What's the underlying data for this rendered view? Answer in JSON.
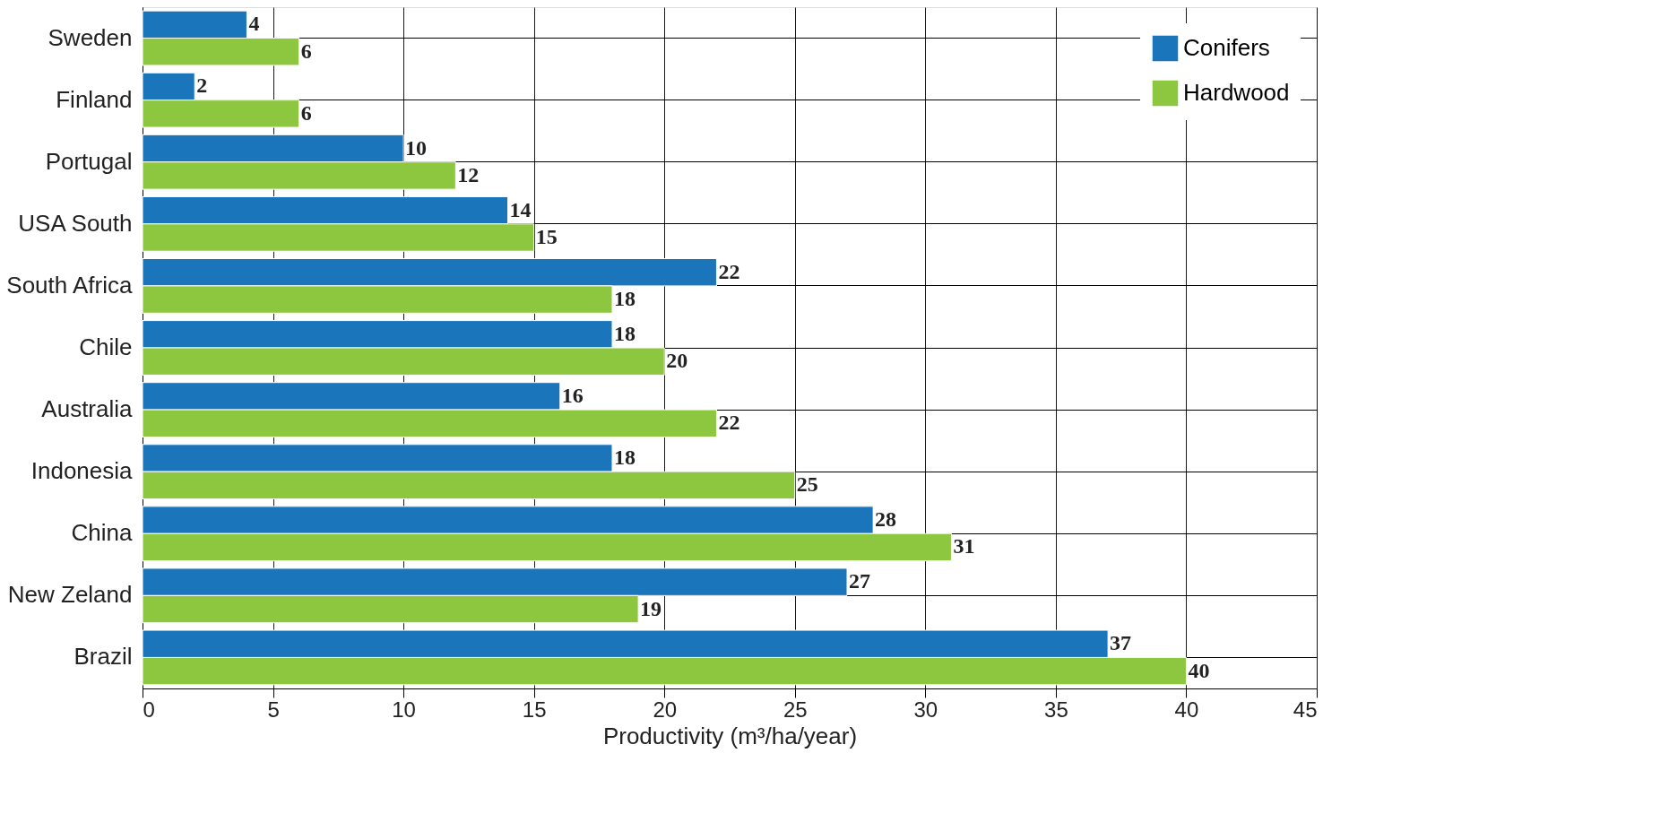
{
  "chart_data": {
    "type": "bar",
    "orientation": "horizontal",
    "xlabel": "Productivity (m³/ha/year)",
    "categories": [
      "Sweden",
      "Finland",
      "Portugal",
      "USA South",
      "South Africa",
      "Chile",
      "Australia",
      "Indonesia",
      "China",
      "New Zeland",
      "Brazil"
    ],
    "series": [
      {
        "name": "Conifers",
        "color": "#1a75bb",
        "values": [
          4,
          2,
          10,
          14,
          22,
          18,
          16,
          18,
          28,
          27,
          37
        ]
      },
      {
        "name": "Hardwood",
        "color": "#8dc63f",
        "values": [
          6,
          6,
          12,
          15,
          18,
          20,
          22,
          25,
          31,
          19,
          40
        ]
      }
    ],
    "xlim": [
      0,
      45
    ],
    "xticks": [
      0,
      5,
      10,
      15,
      20,
      25,
      30,
      35,
      40,
      45
    ],
    "grid": true,
    "legend": "top right",
    "data_labels": true
  }
}
